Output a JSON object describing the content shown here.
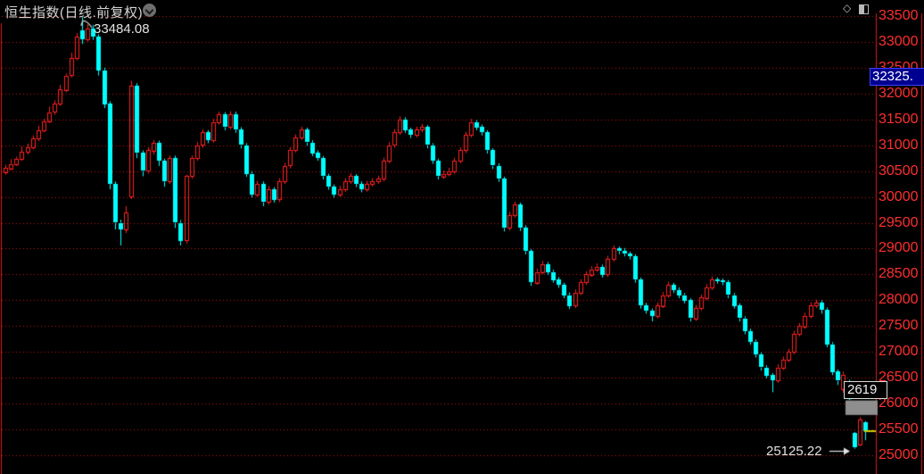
{
  "header": {
    "title": "恒生指数(日线.前复权)",
    "dropdown_icon": "chevron-down-circle",
    "right_icons": [
      "diamond",
      "split-square"
    ]
  },
  "y_axis": {
    "ticks": [
      33500,
      33000,
      32500,
      32000,
      31500,
      31000,
      30500,
      30000,
      29500,
      29000,
      28500,
      28000,
      27500,
      27000,
      26500,
      26000,
      25500,
      25000
    ],
    "highlight_value": "32325.",
    "label_color": "#ff2e2e"
  },
  "overlays": {
    "peak_label": "33484.08",
    "low_label": "25125.22",
    "gap_label": "2619"
  },
  "colors": {
    "background": "#000000",
    "up_candle": "#ff2020",
    "down_candle": "#00ffff",
    "grid": "#c81414",
    "frame": "#e01717",
    "axis_text": "#ff2e2e",
    "badge_bg": "#000090",
    "badge_border": "#4040ff",
    "gap_box": "#8e8e8e",
    "last_price_marker": "#cccc00",
    "annotation_text": "#e2e2e2"
  },
  "chart_data": {
    "type": "candlestick",
    "title": "恒生指数(日线.前复权)",
    "ylabel": "price",
    "y_min": 25000,
    "y_max": 33500,
    "grid_step": 500,
    "grid": "dotted-horizontal",
    "legend": "none",
    "peak_high": 33484.08,
    "annotated_low": 25125.22,
    "crosshair_price": "32325.",
    "gap_box": {
      "price_top": 26060,
      "price_bottom": 25780,
      "from_index": 153.4,
      "to_axis": true
    },
    "last_price_marker": {
      "price": 25460
    },
    "candles_format": [
      "open",
      "high",
      "low",
      "close"
    ],
    "candles": [
      [
        30480,
        30620,
        30430,
        30560
      ],
      [
        30560,
        30730,
        30520,
        30640
      ],
      [
        30640,
        30780,
        30600,
        30740
      ],
      [
        30740,
        30980,
        30700,
        30870
      ],
      [
        30870,
        31030,
        30820,
        30960
      ],
      [
        30960,
        31190,
        30920,
        31130
      ],
      [
        31130,
        31380,
        31080,
        31290
      ],
      [
        31290,
        31510,
        31250,
        31470
      ],
      [
        31470,
        31750,
        31430,
        31640
      ],
      [
        31640,
        31870,
        31590,
        31800
      ],
      [
        31800,
        32170,
        31760,
        32080
      ],
      [
        32080,
        32390,
        32030,
        32350
      ],
      [
        32350,
        32790,
        32310,
        32680
      ],
      [
        32680,
        33170,
        32640,
        33100
      ],
      [
        33220,
        33484.08,
        32960,
        33050
      ],
      [
        33050,
        33340,
        33010,
        33250
      ],
      [
        33250,
        33330,
        33040,
        33100
      ],
      [
        33100,
        33150,
        32350,
        32450
      ],
      [
        32450,
        32500,
        31720,
        31800
      ],
      [
        31800,
        31850,
        30150,
        30250
      ],
      [
        30250,
        30300,
        29370,
        29500
      ],
      [
        29500,
        29560,
        29060,
        29380
      ],
      [
        29380,
        29820,
        29300,
        29700
      ],
      [
        30000,
        32250,
        29960,
        32150
      ],
      [
        32150,
        32200,
        30750,
        30850
      ],
      [
        30850,
        30900,
        30400,
        30500
      ],
      [
        30500,
        30960,
        30450,
        30900
      ],
      [
        30900,
        31100,
        30820,
        31050
      ],
      [
        31050,
        31090,
        30600,
        30700
      ],
      [
        30700,
        30740,
        30200,
        30300
      ],
      [
        30300,
        30800,
        30250,
        30750
      ],
      [
        30750,
        30800,
        29400,
        29500
      ],
      [
        29500,
        29550,
        29060,
        29150
      ],
      [
        29150,
        30430,
        29100,
        30400
      ],
      [
        30400,
        30800,
        30350,
        30750
      ],
      [
        30750,
        31060,
        30700,
        31000
      ],
      [
        31000,
        31310,
        30950,
        31250
      ],
      [
        31250,
        31290,
        31040,
        31100
      ],
      [
        31100,
        31510,
        31050,
        31450
      ],
      [
        31450,
        31650,
        31400,
        31600
      ],
      [
        31600,
        31640,
        31290,
        31350
      ],
      [
        31350,
        31660,
        31300,
        31600
      ],
      [
        31600,
        31650,
        31240,
        31300
      ],
      [
        31300,
        31350,
        30940,
        31000
      ],
      [
        31000,
        31040,
        30390,
        30450
      ],
      [
        30450,
        30500,
        29990,
        30050
      ],
      [
        30050,
        30310,
        30000,
        30250
      ],
      [
        30250,
        30300,
        29820,
        29900
      ],
      [
        29900,
        30210,
        29850,
        30150
      ],
      [
        30150,
        30190,
        29890,
        29950
      ],
      [
        29950,
        30360,
        29900,
        30300
      ],
      [
        30300,
        30660,
        30250,
        30600
      ],
      [
        30600,
        30960,
        30550,
        30900
      ],
      [
        30900,
        31210,
        30860,
        31150
      ],
      [
        31150,
        31360,
        31100,
        31300
      ],
      [
        31300,
        31340,
        30990,
        31050
      ],
      [
        31050,
        31100,
        30790,
        30850
      ],
      [
        30850,
        30900,
        30700,
        30750
      ],
      [
        30750,
        30790,
        30340,
        30400
      ],
      [
        30400,
        30450,
        30140,
        30200
      ],
      [
        30200,
        30240,
        29990,
        30050
      ],
      [
        30050,
        30210,
        30000,
        30150
      ],
      [
        30150,
        30360,
        30100,
        30300
      ],
      [
        30300,
        30460,
        30250,
        30400
      ],
      [
        30400,
        30440,
        30190,
        30250
      ],
      [
        30250,
        30300,
        30090,
        30150
      ],
      [
        30150,
        30310,
        30100,
        30250
      ],
      [
        30250,
        30360,
        30200,
        30300
      ],
      [
        30300,
        30410,
        30250,
        30350
      ],
      [
        30350,
        30760,
        30300,
        30700
      ],
      [
        30700,
        31060,
        30650,
        31000
      ],
      [
        31000,
        31310,
        30950,
        31250
      ],
      [
        31250,
        31560,
        31200,
        31500
      ],
      [
        31500,
        31540,
        31240,
        31300
      ],
      [
        31300,
        31340,
        31140,
        31200
      ],
      [
        31200,
        31360,
        31150,
        31300
      ],
      [
        31300,
        31410,
        31250,
        31350
      ],
      [
        31350,
        31390,
        30940,
        31000
      ],
      [
        31000,
        31040,
        30640,
        30700
      ],
      [
        30700,
        30740,
        30340,
        30400
      ],
      [
        30400,
        30510,
        30350,
        30450
      ],
      [
        30450,
        30560,
        30400,
        30500
      ],
      [
        30500,
        30760,
        30450,
        30700
      ],
      [
        30700,
        30960,
        30650,
        30900
      ],
      [
        30900,
        31260,
        30850,
        31200
      ],
      [
        31200,
        31510,
        31150,
        31450
      ],
      [
        31450,
        31490,
        31290,
        31350
      ],
      [
        31350,
        31400,
        31190,
        31250
      ],
      [
        31250,
        31290,
        30840,
        30900
      ],
      [
        30900,
        30940,
        30540,
        30600
      ],
      [
        30600,
        30650,
        30290,
        30350
      ],
      [
        30350,
        30390,
        29330,
        29400
      ],
      [
        29400,
        29710,
        29350,
        29650
      ],
      [
        29650,
        29910,
        29600,
        29850
      ],
      [
        29850,
        29890,
        29340,
        29400
      ],
      [
        29400,
        29450,
        28890,
        28950
      ],
      [
        28950,
        28990,
        28280,
        28350
      ],
      [
        28350,
        28610,
        28300,
        28550
      ],
      [
        28550,
        28760,
        28500,
        28700
      ],
      [
        28700,
        28740,
        28490,
        28550
      ],
      [
        28550,
        28590,
        28340,
        28400
      ],
      [
        28400,
        28450,
        28240,
        28300
      ],
      [
        28300,
        28340,
        28040,
        28100
      ],
      [
        28100,
        28150,
        27830,
        27900
      ],
      [
        27900,
        28210,
        27850,
        28150
      ],
      [
        28150,
        28410,
        28100,
        28350
      ],
      [
        28350,
        28560,
        28300,
        28500
      ],
      [
        28500,
        28660,
        28450,
        28600
      ],
      [
        28600,
        28710,
        28550,
        28650
      ],
      [
        28650,
        28690,
        28440,
        28500
      ],
      [
        28500,
        28860,
        28450,
        28800
      ],
      [
        28800,
        29060,
        28750,
        29000
      ],
      [
        29000,
        29040,
        28890,
        28950
      ],
      [
        28950,
        29010,
        28850,
        28900
      ],
      [
        28900,
        28940,
        28790,
        28850
      ],
      [
        28850,
        28890,
        28340,
        28400
      ],
      [
        28400,
        28440,
        27840,
        27900
      ],
      [
        27900,
        27950,
        27740,
        27800
      ],
      [
        27800,
        27840,
        27590,
        27700
      ],
      [
        27700,
        27960,
        27650,
        27900
      ],
      [
        27900,
        28160,
        27850,
        28100
      ],
      [
        28100,
        28360,
        28050,
        28300
      ],
      [
        28300,
        28340,
        28140,
        28200
      ],
      [
        28200,
        28250,
        28040,
        28100
      ],
      [
        28100,
        28140,
        27940,
        28000
      ],
      [
        28000,
        28040,
        27590,
        27650
      ],
      [
        27650,
        27910,
        27600,
        27850
      ],
      [
        27850,
        28110,
        27800,
        28050
      ],
      [
        28050,
        28310,
        28000,
        28250
      ],
      [
        28250,
        28460,
        28200,
        28400
      ],
      [
        28400,
        28440,
        28320,
        28380
      ],
      [
        28380,
        28420,
        28290,
        28350
      ],
      [
        28350,
        28390,
        28040,
        28100
      ],
      [
        28100,
        28140,
        27840,
        27900
      ],
      [
        27900,
        27940,
        27590,
        27650
      ],
      [
        27650,
        27690,
        27340,
        27400
      ],
      [
        27400,
        27450,
        27140,
        27200
      ],
      [
        27200,
        27240,
        26890,
        26950
      ],
      [
        26950,
        26990,
        26640,
        26700
      ],
      [
        26700,
        26740,
        26490,
        26550
      ],
      [
        26550,
        26590,
        26220,
        26450
      ],
      [
        26450,
        26760,
        26400,
        26700
      ],
      [
        26700,
        26910,
        26650,
        26850
      ],
      [
        26850,
        27060,
        26800,
        27000
      ],
      [
        27000,
        27410,
        26950,
        27350
      ],
      [
        27350,
        27560,
        27300,
        27500
      ],
      [
        27500,
        27760,
        27450,
        27700
      ],
      [
        27700,
        27960,
        27650,
        27900
      ],
      [
        27900,
        28010,
        27850,
        27950
      ],
      [
        27950,
        28000,
        27740,
        27820
      ],
      [
        27820,
        27860,
        27090,
        27150
      ],
      [
        27150,
        27190,
        26550,
        26620
      ],
      [
        26620,
        26660,
        26360,
        26440
      ],
      [
        26290,
        26620,
        26210,
        26560
      ],
      [
        26420,
        26460,
        26070,
        26100
      ],
      [
        25430,
        25450,
        25125.22,
        25150
      ],
      [
        25210,
        25740,
        25180,
        25690
      ],
      [
        25640,
        25660,
        25290,
        25460
      ]
    ]
  }
}
